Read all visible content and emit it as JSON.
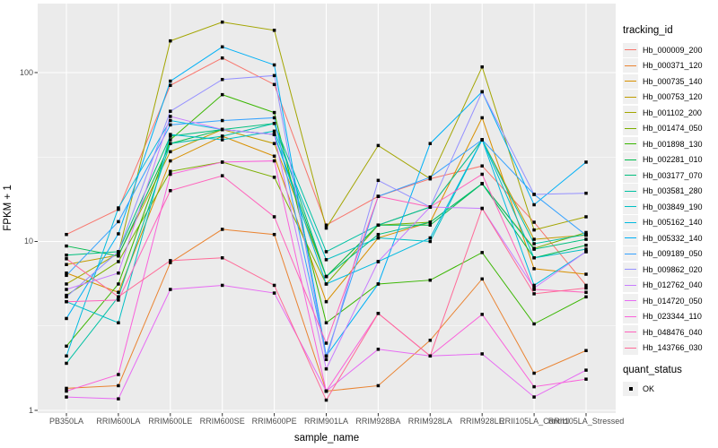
{
  "panel": {
    "bg": "#EBEBEB",
    "grid_color": "#FFFFFF",
    "tick_color": "#333333",
    "tick_label_color": "#4D4D4D",
    "point_color": "#000000"
  },
  "legend": {
    "tracking_title": "tracking_id",
    "quant_title": "quant_status",
    "quant_items": [
      {
        "label": "OK",
        "shape": "filled-square"
      }
    ]
  },
  "chart_data": {
    "type": "line",
    "title": "",
    "xlabel": "sample_name",
    "ylabel": "FPKM + 1",
    "y_scale": "log10",
    "ylim": [
      0.96,
      260
    ],
    "grid": true,
    "legend_position": "right",
    "yticks": [
      {
        "label": "1",
        "value": 1
      },
      {
        "label": "10",
        "value": 10
      },
      {
        "label": "100",
        "value": 100
      }
    ],
    "y_minor": [
      3.162,
      31.62
    ],
    "point_shape": "filled-square",
    "categories": [
      "PB350LA",
      "RRIM600LA",
      "RRIM600LE",
      "RRIM600SE",
      "RRIM600PE",
      "RRIM901LA",
      "RRIM928BA",
      "RRIM928LA",
      "RRIM928LE",
      "RRII105LA_Control",
      "RRII105LA_Stressed"
    ],
    "series": [
      {
        "name": "Hb_000009_200",
        "color": "#F8766D",
        "values": [
          11,
          15.5,
          84,
          122,
          85,
          12.5,
          18.5,
          23.5,
          28,
          13,
          5.5
        ]
      },
      {
        "name": "Hb_000371_120",
        "color": "#EA8331",
        "values": [
          1.35,
          1.4,
          7.5,
          11.8,
          11,
          1.3,
          1.4,
          2.6,
          6.0,
          1.66,
          2.26
        ]
      },
      {
        "name": "Hb_000735_140",
        "color": "#D89000",
        "values": [
          6.5,
          5.0,
          30,
          42,
          32,
          4.4,
          10.5,
          13,
          54,
          6.9,
          6.4
        ]
      },
      {
        "name": "Hb_000753_120",
        "color": "#C09B00",
        "values": [
          7.3,
          8.3,
          34,
          46,
          38,
          6.2,
          12.5,
          16,
          40,
          10.3,
          10.9
        ]
      },
      {
        "name": "Hb_001102_200",
        "color": "#A3A500",
        "values": [
          5.6,
          8.5,
          154,
          199,
          178,
          12,
          37,
          23.5,
          108,
          11.7,
          14
        ]
      },
      {
        "name": "Hb_001474_050",
        "color": "#7CAE00",
        "values": [
          4.8,
          7.6,
          26,
          29.5,
          24,
          5.6,
          12.5,
          13,
          22,
          9.1,
          11.3
        ]
      },
      {
        "name": "Hb_001898_130",
        "color": "#39B600",
        "values": [
          2.4,
          5.6,
          40,
          74,
          58,
          3.3,
          5.6,
          5.9,
          8.6,
          3.25,
          4.7
        ]
      },
      {
        "name": "Hb_002281_010",
        "color": "#00BB4E",
        "values": [
          9.4,
          8.2,
          38,
          46,
          43,
          6.2,
          12.5,
          12.5,
          22,
          8.0,
          9.5
        ]
      },
      {
        "name": "Hb_003177_070",
        "color": "#00BF7D",
        "values": [
          8.3,
          8.7,
          42,
          46,
          50,
          6.2,
          11,
          13,
          22,
          9.0,
          10.3
        ]
      },
      {
        "name": "Hb_003581_280",
        "color": "#00C1A3",
        "values": [
          1.9,
          4.7,
          38,
          42,
          50,
          8.7,
          12.5,
          16,
          40,
          9.7,
          11
        ]
      },
      {
        "name": "Hb_003849_190",
        "color": "#00BFC4",
        "values": [
          4.4,
          3.3,
          43,
          40,
          45,
          7.8,
          10.5,
          10,
          40,
          8.0,
          9.0
        ]
      },
      {
        "name": "Hb_005162_140",
        "color": "#00BAE0",
        "values": [
          2.1,
          15.8,
          52,
          46,
          43,
          5.6,
          7.6,
          10.5,
          40,
          5.5,
          8.7
        ]
      },
      {
        "name": "Hb_005332_140",
        "color": "#00B0F6",
        "values": [
          3.5,
          11.1,
          89,
          142,
          111,
          2.1,
          5.6,
          38,
          77,
          16.5,
          29.5
        ]
      },
      {
        "name": "Hb_009189_050",
        "color": "#35A2FF",
        "values": [
          6.3,
          13.1,
          49,
          52,
          54,
          2.1,
          18.5,
          24,
          40,
          19,
          10.9
        ]
      },
      {
        "name": "Hb_009862_020",
        "color": "#9590FF",
        "values": [
          4.7,
          8.7,
          59,
          91,
          96,
          2.0,
          23,
          16,
          77,
          19,
          19.3
        ]
      },
      {
        "name": "Hb_012762_040",
        "color": "#C77CFF",
        "values": [
          5.2,
          6.5,
          55,
          46,
          43,
          1.76,
          7.6,
          16,
          15.7,
          5.3,
          8.7
        ]
      },
      {
        "name": "Hb_014720_050",
        "color": "#E76BF3",
        "values": [
          1.2,
          1.17,
          5.2,
          5.5,
          4.95,
          1.3,
          2.3,
          2.1,
          2.16,
          1.2,
          1.73
        ]
      },
      {
        "name": "Hb_023344_110",
        "color": "#FA62DB",
        "values": [
          1.3,
          1.63,
          25,
          29.5,
          30,
          1.3,
          3.75,
          2.1,
          3.7,
          1.38,
          1.53
        ]
      },
      {
        "name": "Hb_048476_040",
        "color": "#FF62BC",
        "values": [
          4.4,
          4.5,
          20,
          24.5,
          14,
          2.5,
          18.5,
          16,
          25,
          5.2,
          5.0
        ]
      },
      {
        "name": "Hb_143766_030",
        "color": "#FF6A98",
        "values": [
          7.9,
          4.7,
          7.7,
          8.0,
          5.5,
          1.15,
          3.75,
          2.1,
          15.7,
          4.9,
          5.3
        ]
      }
    ]
  }
}
